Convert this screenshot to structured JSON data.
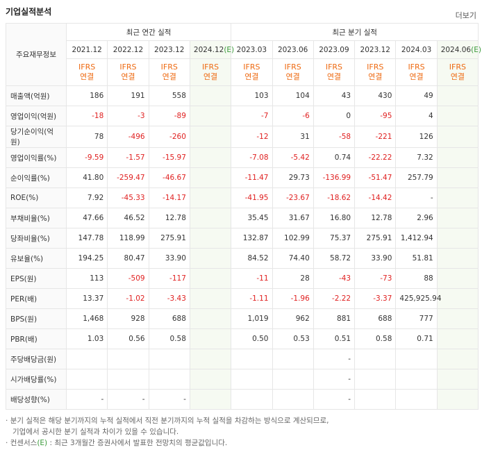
{
  "header": {
    "title": "기업실적분석",
    "more": "더보기"
  },
  "table": {
    "corner": "주요재무정보",
    "groups": [
      "최근 연간 실적",
      "최근 분기 실적"
    ],
    "periods": [
      {
        "label": "2021.12"
      },
      {
        "label": "2022.12"
      },
      {
        "label": "2023.12"
      },
      {
        "label": "2024.12",
        "estimate": "(E)"
      },
      {
        "label": "2023.03"
      },
      {
        "label": "2023.06"
      },
      {
        "label": "2023.09"
      },
      {
        "label": "2023.12"
      },
      {
        "label": "2024.03"
      },
      {
        "label": "2024.06",
        "estimate": "(E)"
      }
    ],
    "standard": [
      "IFRS",
      "연결"
    ],
    "rows": [
      {
        "label": "매출액(억원)",
        "cells": [
          "186",
          "191",
          "558",
          null,
          "103",
          "104",
          "43",
          "430",
          "49",
          null
        ]
      },
      {
        "label": "영업이익(억원)",
        "cells": [
          "-18",
          "-3",
          "-89",
          null,
          "-7",
          "-6",
          "0",
          "-95",
          "4",
          null
        ]
      },
      {
        "label": "당기순이익(억원)",
        "cells": [
          "78",
          "-496",
          "-260",
          null,
          "-12",
          "31",
          "-58",
          "-221",
          "126",
          null
        ]
      },
      {
        "label": "영업이익률(%)",
        "cells": [
          "-9.59",
          "-1.57",
          "-15.97",
          null,
          "-7.08",
          "-5.42",
          "0.74",
          "-22.22",
          "7.32",
          null
        ]
      },
      {
        "label": "순이익률(%)",
        "cells": [
          "41.80",
          "-259.47",
          "-46.67",
          null,
          "-11.47",
          "29.73",
          "-136.99",
          "-51.47",
          "257.79",
          null
        ]
      },
      {
        "label": "ROE(%)",
        "cells": [
          "7.92",
          "-45.33",
          "-14.17",
          null,
          "-41.95",
          "-23.67",
          "-18.62",
          "-14.42",
          "-",
          null
        ]
      },
      {
        "label": "부채비율(%)",
        "cells": [
          "47.66",
          "46.52",
          "12.78",
          null,
          "35.45",
          "31.67",
          "16.80",
          "12.78",
          "2.96",
          null
        ]
      },
      {
        "label": "당좌비율(%)",
        "cells": [
          "147.78",
          "118.99",
          "275.91",
          null,
          "132.87",
          "102.99",
          "75.37",
          "275.91",
          "1,412.94",
          null
        ]
      },
      {
        "label": "유보율(%)",
        "cells": [
          "194.25",
          "80.47",
          "33.90",
          null,
          "84.52",
          "74.40",
          "58.72",
          "33.90",
          "51.81",
          null
        ]
      },
      {
        "label": "EPS(원)",
        "cells": [
          "113",
          "-509",
          "-117",
          null,
          "-11",
          "28",
          "-43",
          "-73",
          "88",
          null
        ]
      },
      {
        "label": "PER(배)",
        "cells": [
          "13.37",
          "-1.02",
          "-3.43",
          null,
          "-1.11",
          "-1.96",
          "-2.22",
          "-3.37",
          "425,925.94",
          null
        ]
      },
      {
        "label": "BPS(원)",
        "cells": [
          "1,468",
          "928",
          "688",
          null,
          "1,019",
          "962",
          "881",
          "688",
          "777",
          null
        ]
      },
      {
        "label": "PBR(배)",
        "cells": [
          "1.03",
          "0.56",
          "0.58",
          null,
          "0.50",
          "0.53",
          "0.51",
          "0.58",
          "0.71",
          null
        ]
      },
      {
        "label": "주당배당금(원)",
        "cells": [
          null,
          null,
          null,
          null,
          null,
          null,
          "-",
          null,
          null,
          null
        ]
      },
      {
        "label": "시가배당률(%)",
        "cells": [
          null,
          null,
          null,
          null,
          null,
          null,
          "-",
          null,
          null,
          null
        ]
      },
      {
        "label": "배당성향(%)",
        "cells": [
          "-",
          "-",
          "-",
          null,
          null,
          null,
          "-",
          null,
          null,
          null
        ]
      }
    ]
  },
  "notes": {
    "lines": [
      "분기 실적은 해당 분기까지의 누적 실적에서 직전 분기까지의 누적 실적을 차감하는 방식으로 계산되므로,",
      "기업에서 공시한 분기 실적과 차이가 있을 수 있습니다."
    ],
    "consensus": {
      "term": "컨센서스",
      "mark": "(E)",
      "text": " : 최근 3개월간 증권사에서 발표한 전망치의 평균값입니다."
    }
  }
}
